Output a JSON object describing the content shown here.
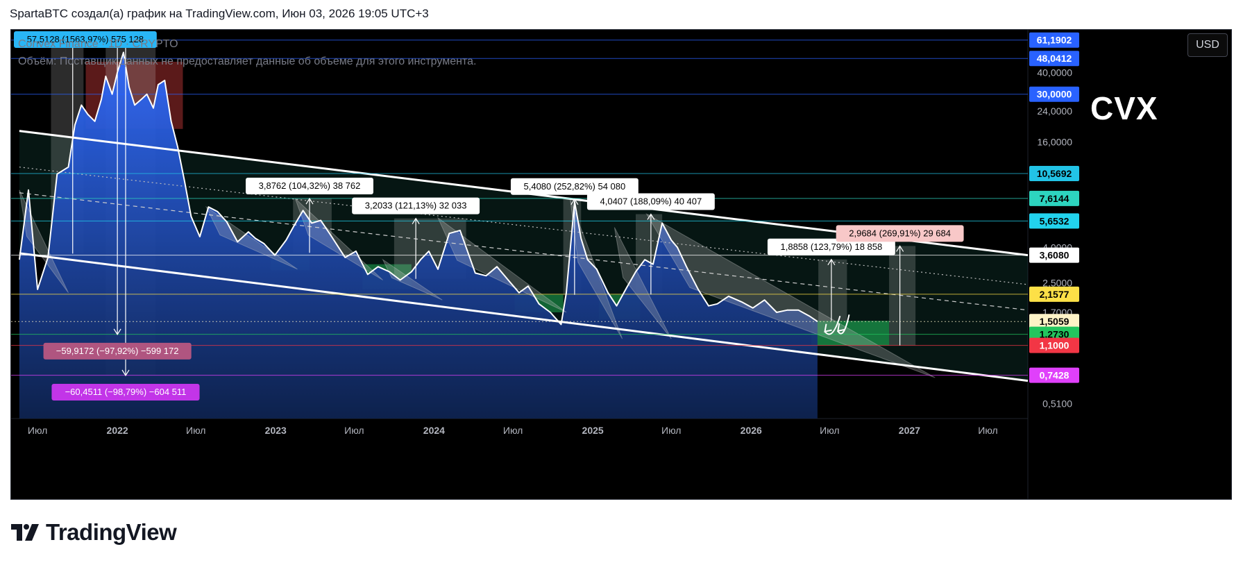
{
  "header": {
    "attribution": "SpartaBTC создал(а) график на TradingView.com, Июн 03, 2026 19:05 UTC+3"
  },
  "toolbar": {
    "currency_label": "USD"
  },
  "legend": {
    "symbol_text": "Convex Finance · 1D · CRYPTO",
    "volume_text": "Объём: Поставщик данных не предоставляет данные об объеме для этого инструмента."
  },
  "ticker": "CVX",
  "footer": {
    "brand": "TradingView"
  },
  "colors": {
    "background": "#000000",
    "area_top": "#2962ff",
    "area_bottom": "#0d1f4d",
    "price_line": "#ffffff",
    "channel": "#ffffff"
  },
  "chart_data": {
    "type": "area",
    "y_scale": "log",
    "ylim": [
      0.42,
      70
    ],
    "x_range": [
      "2021-05-01",
      "2027-10-01"
    ],
    "price_axis_ticks": [
      40.0,
      24.0,
      16.0,
      6.0,
      4.0,
      2.5,
      1.7,
      0.51
    ],
    "price_axis_tick_labels": [
      "40,0000",
      "24,0000",
      "16,0000",
      "6,0000",
      "4,0000",
      "2,5000",
      "1,7000",
      "0,5100"
    ],
    "time_axis_labels": [
      {
        "date": "2021-07-01",
        "label": "Июл"
      },
      {
        "date": "2022-01-01",
        "label": "2022"
      },
      {
        "date": "2022-07-01",
        "label": "Июл"
      },
      {
        "date": "2023-01-01",
        "label": "2023"
      },
      {
        "date": "2023-07-01",
        "label": "Июл"
      },
      {
        "date": "2024-01-01",
        "label": "2024"
      },
      {
        "date": "2024-07-01",
        "label": "Июл"
      },
      {
        "date": "2025-01-01",
        "label": "2025"
      },
      {
        "date": "2025-07-01",
        "label": "Июл"
      },
      {
        "date": "2026-01-01",
        "label": "2026"
      },
      {
        "date": "2026-07-01",
        "label": "Июл"
      },
      {
        "date": "2027-01-01",
        "label": "2027"
      },
      {
        "date": "2027-07-01",
        "label": "Июл"
      }
    ],
    "series": [
      {
        "x": [
          "2021-05-20",
          "2021-06-10",
          "2021-07-01",
          "2021-07-25",
          "2021-08-15",
          "2021-09-10",
          "2021-09-25",
          "2021-10-10",
          "2021-10-25",
          "2021-11-10",
          "2021-11-25",
          "2021-12-05",
          "2021-12-20",
          "2022-01-01",
          "2022-01-15",
          "2022-01-28",
          "2022-02-10",
          "2022-02-25",
          "2022-03-10",
          "2022-03-25",
          "2022-04-05",
          "2022-04-20",
          "2022-05-05",
          "2022-05-20",
          "2022-06-05",
          "2022-06-20",
          "2022-07-10",
          "2022-07-30",
          "2022-08-20",
          "2022-09-10",
          "2022-10-05",
          "2022-10-30",
          "2022-11-15",
          "2022-12-05",
          "2022-12-30",
          "2023-01-25",
          "2023-02-10",
          "2023-03-05",
          "2023-03-25",
          "2023-04-15",
          "2023-05-10",
          "2023-06-10",
          "2023-07-05",
          "2023-08-01",
          "2023-08-25",
          "2023-09-20",
          "2023-10-15",
          "2023-11-10",
          "2023-12-01",
          "2023-12-20",
          "2024-01-10",
          "2024-02-05",
          "2024-03-01",
          "2024-03-15",
          "2024-04-05",
          "2024-04-30",
          "2024-05-25",
          "2024-06-20",
          "2024-07-15",
          "2024-08-05",
          "2024-08-30",
          "2024-09-25",
          "2024-10-20",
          "2024-11-01",
          "2024-11-20",
          "2024-12-05",
          "2024-12-20",
          "2025-01-10",
          "2025-02-05",
          "2025-02-25",
          "2025-03-20",
          "2025-04-10",
          "2025-05-01",
          "2025-05-20",
          "2025-06-10",
          "2025-07-01",
          "2025-07-15",
          "2025-08-05",
          "2025-09-01",
          "2025-09-25",
          "2025-10-15",
          "2025-11-10",
          "2025-12-10",
          "2026-01-05",
          "2026-02-01",
          "2026-03-01",
          "2026-03-25",
          "2026-04-20",
          "2026-05-15",
          "2026-06-03"
        ],
        "values": [
          3.4,
          8.5,
          2.3,
          3.5,
          10.5,
          11.5,
          20,
          26,
          23,
          21,
          28,
          38,
          30,
          40,
          52,
          33,
          26,
          28,
          30,
          25,
          34,
          36,
          21,
          15,
          9.5,
          6.0,
          4.6,
          6.8,
          6.4,
          5.6,
          4.3,
          4.9,
          4.5,
          4.2,
          3.6,
          4.4,
          5.2,
          6.5,
          5.5,
          5.7,
          4.6,
          3.5,
          3.8,
          2.8,
          3.1,
          2.9,
          2.6,
          2.9,
          3.4,
          3.8,
          3.0,
          4.8,
          5.0,
          4.0,
          2.85,
          2.75,
          3.1,
          2.6,
          2.2,
          2.4,
          1.9,
          1.7,
          1.45,
          2.2,
          7.3,
          4.5,
          3.4,
          3.0,
          2.2,
          1.85,
          2.35,
          2.9,
          3.4,
          3.2,
          5.5,
          4.4,
          4.0,
          3.1,
          2.3,
          1.85,
          1.9,
          2.1,
          1.95,
          1.8,
          2.0,
          1.7,
          1.75,
          1.75,
          1.62,
          1.5059
        ]
      }
    ],
    "channel": {
      "upper": {
        "from": {
          "x": "2021-05-20",
          "y": 18.5
        },
        "to": {
          "x": "2027-10-01",
          "y": 3.608
        }
      },
      "lower": {
        "from": {
          "x": "2021-05-20",
          "y": 3.7
        },
        "to": {
          "x": "2027-10-01",
          "y": 0.69
        }
      },
      "mid_dashed": {
        "from": {
          "x": "2021-05-20",
          "y": 8.2
        },
        "to": {
          "x": "2027-10-01",
          "y": 1.75
        }
      },
      "mid_dotted": {
        "from": {
          "x": "2021-05-20",
          "y": 11.5
        },
        "to": {
          "x": "2027-10-01",
          "y": 2.45
        }
      }
    },
    "horizontal_levels": [
      {
        "price": 61.1902,
        "label": "61,1902",
        "color": "#2962ff",
        "text_color": "#ffffff"
      },
      {
        "price": 48.0412,
        "label": "48,0412",
        "color": "#2962ff",
        "text_color": "#ffffff"
      },
      {
        "price": 30.0,
        "label": "30,0000",
        "color": "#2962ff",
        "text_color": "#ffffff"
      },
      {
        "price": 10.5692,
        "label": "10,5692",
        "color": "#22c3e6",
        "text_color": "#000000"
      },
      {
        "price": 7.6144,
        "label": "7,6144",
        "color": "#2dd4bf",
        "text_color": "#000000"
      },
      {
        "price": 5.6532,
        "label": "5,6532",
        "color": "#22d3ee",
        "text_color": "#000000"
      },
      {
        "price": 3.608,
        "label": "3,6080",
        "color": "#ffffff",
        "text_color": "#000000"
      },
      {
        "price": 2.1577,
        "label": "2,1577",
        "color": "#fde047",
        "text_color": "#000000"
      },
      {
        "price": 1.5059,
        "label": "1,5059",
        "color": "#fef3c7",
        "text_color": "#000000"
      },
      {
        "price": 1.273,
        "label": "1,2730",
        "color": "#22c55e",
        "text_color": "#000000"
      },
      {
        "price": 1.1,
        "label": "1,1000",
        "color": "#f23645",
        "text_color": "#ffffff"
      },
      {
        "price": 0.7428,
        "label": "0,7428",
        "color": "#e040fb",
        "text_color": "#ffffff"
      }
    ],
    "measurements": [
      {
        "label": "57,5128 (1563,97%) 575 128",
        "from": {
          "x": "2021-09-20",
          "y": 3.68
        },
        "to": {
          "x": "2021-09-20",
          "y": 61.19
        },
        "bg": "#29b6f6",
        "text_color": "#000000",
        "kind": "up"
      },
      {
        "label": "−59,9172 (−97,92%) −599 172",
        "from": {
          "x": "2022-01-01",
          "y": 61.19
        },
        "to": {
          "x": "2022-01-01",
          "y": 1.27
        },
        "bg": "#b05580",
        "text_color": "#ffffff",
        "kind": "down"
      },
      {
        "label": "−60,4511 (−98,79%) −604 511",
        "from": {
          "x": "2022-01-20",
          "y": 61.19
        },
        "to": {
          "x": "2022-01-20",
          "y": 0.74
        },
        "bg": "#c235e8",
        "text_color": "#ffffff",
        "kind": "down"
      },
      {
        "label": "3,8762 (104,32%) 38 762",
        "from": {
          "x": "2023-03-20",
          "y": 3.72
        },
        "to": {
          "x": "2023-03-20",
          "y": 7.6
        },
        "bg": "#ffffff",
        "text_color": "#000000",
        "kind": "up"
      },
      {
        "label": "3,2033 (121,13%) 32 033",
        "from": {
          "x": "2023-11-20",
          "y": 2.64
        },
        "to": {
          "x": "2023-11-20",
          "y": 5.85
        },
        "bg": "#ffffff",
        "text_color": "#000000",
        "kind": "up"
      },
      {
        "label": "5,4080 (252,82%) 54 080",
        "from": {
          "x": "2024-11-20",
          "y": 2.14
        },
        "to": {
          "x": "2024-11-20",
          "y": 7.55
        },
        "bg": "#ffffff",
        "text_color": "#000000",
        "kind": "up"
      },
      {
        "label": "4,0407 (188,09%) 40 407",
        "from": {
          "x": "2025-05-15",
          "y": 2.15
        },
        "to": {
          "x": "2025-05-15",
          "y": 6.19
        },
        "bg": "#ffffff",
        "text_color": "#000000",
        "kind": "up"
      },
      {
        "label": "1,8858 (123,79%) 18 858",
        "from": {
          "x": "2026-07-05",
          "y": 1.52
        },
        "to": {
          "x": "2026-07-05",
          "y": 3.41
        },
        "bg": "#ffffff",
        "text_color": "#000000",
        "kind": "up"
      },
      {
        "label": "2,9684 (269,91%) 29 684",
        "from": {
          "x": "2026-12-10",
          "y": 1.1
        },
        "to": {
          "x": "2026-12-10",
          "y": 4.07
        },
        "bg": "#f8c8c8",
        "text_color": "#000000",
        "kind": "up"
      }
    ],
    "measure_boxes": [
      {
        "x1": "2021-08-01",
        "x2": "2021-10-15",
        "y1": 3.68,
        "y2": 61.19
      },
      {
        "x1": "2021-12-05",
        "x2": "2022-03-30",
        "y1": 0.74,
        "y2": 61.19
      },
      {
        "x1": "2023-02-10",
        "x2": "2023-05-10",
        "y1": 3.72,
        "y2": 7.6
      },
      {
        "x1": "2023-10-01",
        "x2": "2024-03-15",
        "y1": 2.64,
        "y2": 5.85
      },
      {
        "x1": "2024-10-25",
        "x2": "2024-12-05",
        "y1": 2.14,
        "y2": 7.55
      },
      {
        "x1": "2025-04-10",
        "x2": "2025-06-10",
        "y1": 2.15,
        "y2": 6.19
      },
      {
        "x1": "2026-06-05",
        "x2": "2026-08-10",
        "y1": 1.52,
        "y2": 3.41
      },
      {
        "x1": "2026-11-15",
        "x2": "2027-01-15",
        "y1": 1.1,
        "y2": 4.07
      }
    ],
    "highlight_zones": [
      {
        "x1": "2021-10-20",
        "x2": "2022-06-01",
        "y1": 19,
        "y2": 46,
        "color": "rgba(239,68,68,0.38)"
      },
      {
        "x1": "2022-12-20",
        "x2": "2023-03-20",
        "y1": 2.95,
        "y2": 3.7,
        "color": "rgba(34,197,94,0.45)"
      },
      {
        "x1": "2023-07-20",
        "x2": "2023-11-10",
        "y1": 2.3,
        "y2": 3.2,
        "color": "rgba(34,197,94,0.45)"
      },
      {
        "x1": "2024-07-05",
        "x2": "2024-10-25",
        "y1": 1.7,
        "y2": 2.15,
        "color": "rgba(34,197,94,0.45)"
      },
      {
        "x1": "2025-01-15",
        "x2": "2025-04-20",
        "y1": 1.55,
        "y2": 2.15,
        "color": "rgba(34,197,94,0.45)"
      },
      {
        "x1": "2026-05-20",
        "x2": "2026-11-15",
        "y1": 1.1,
        "y2": 1.52,
        "color": "rgba(34,197,94,0.55)"
      }
    ],
    "triangles": [
      {
        "x1": "2021-05-20",
        "y1": 8.5,
        "x2": "2021-09-10",
        "y2": 2.2
      },
      {
        "x1": "2022-07-25",
        "y1": 6.8,
        "x2": "2023-02-20",
        "y2": 3.0
      },
      {
        "x1": "2023-02-15",
        "y1": 7.6,
        "x2": "2023-09-05",
        "y2": 2.6
      },
      {
        "x1": "2023-09-05",
        "y1": 3.4,
        "x2": "2024-01-20",
        "y2": 2.0
      },
      {
        "x1": "2024-01-10",
        "y1": 5.9,
        "x2": "2024-11-01",
        "y2": 1.7
      },
      {
        "x1": "2024-11-10",
        "y1": 7.5,
        "x2": "2025-03-10",
        "y2": 1.2
      },
      {
        "x1": "2025-02-20",
        "y1": 5.2,
        "x2": "2025-07-01",
        "y2": 1.2
      },
      {
        "x1": "2025-05-05",
        "y1": 6.2,
        "x2": "2027-03-01",
        "y2": 0.72
      }
    ],
    "arrows": [
      {
        "from": {
          "x": "2026-07-25",
          "y": 1.62
        },
        "to": {
          "x": "2026-06-20",
          "y": 1.32
        }
      },
      {
        "from": {
          "x": "2026-08-15",
          "y": 1.65
        },
        "to": {
          "x": "2026-07-20",
          "y": 1.33
        }
      }
    ]
  }
}
